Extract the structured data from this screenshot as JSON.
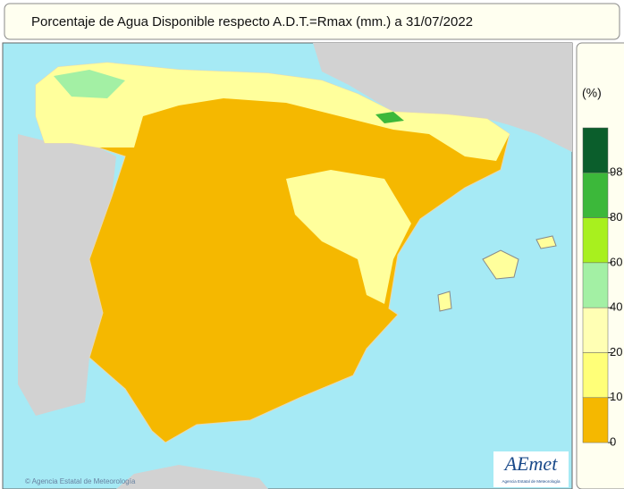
{
  "header": {
    "title": "Porcentaje de Agua Disponible respecto A.D.T.=Rmax (mm.) a 31/07/2022"
  },
  "legend": {
    "unit": "(%)",
    "breaks": [
      98,
      80,
      60,
      40,
      20,
      10,
      0
    ],
    "colors": [
      "#0b5e2c",
      "#3cb83a",
      "#a8f01e",
      "#a3f0a4",
      "#ffffb4",
      "#ffff78",
      "#f5b800"
    ]
  },
  "footer": {
    "credit": "© Agencia Estatal de Meteorología",
    "logo": "AEmet",
    "logo_caption": "Agencia Estatal de Meteorología"
  }
}
